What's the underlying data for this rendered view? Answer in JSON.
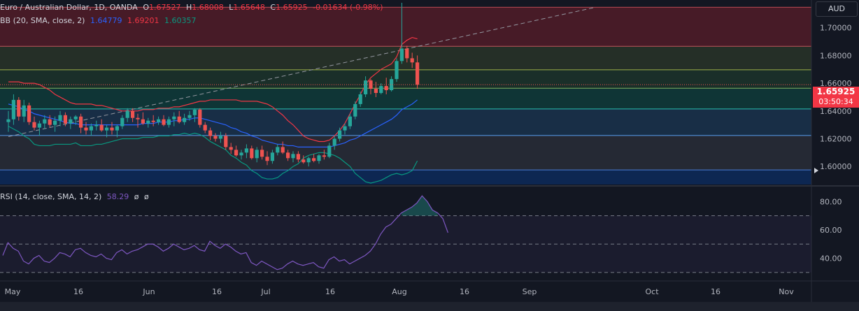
{
  "header": {
    "symbol": "Euro / Australian Dollar, 1D, OANDA",
    "o_label": "O",
    "o_value": "1.67527",
    "h_label": "H",
    "h_value": "1.68008",
    "l_label": "L",
    "l_value": "1.65648",
    "c_label": "C",
    "c_value": "1.65925",
    "change": "-0.01634 (-0.98%)"
  },
  "bb_legend": {
    "label": "BB (20, SMA, close, 2)",
    "basis": "1.64779",
    "upper": "1.69201",
    "lower": "1.60357"
  },
  "rsi_legend": {
    "label": "RSI (14, close, SMA, 14, 2)",
    "value": "58.29",
    "extra1": "ø",
    "extra2": "ø"
  },
  "price_axis": {
    "currency": "AUD",
    "current_price": "1.65925",
    "countdown": "03:50:34"
  },
  "colors": {
    "background": "#131722",
    "up": "#26a69a",
    "down": "#ef5350",
    "bb_basis": "#2962ff",
    "bb_upper": "#f23645",
    "bb_lower": "#089981",
    "rsi": "#7e57c2",
    "current_price_tag": "#f23645"
  },
  "chart_data": [
    {
      "type": "candlestick",
      "title": "Euro / Australian Dollar, 1D, OANDA",
      "x_ticks": [
        "May",
        "16",
        "Jun",
        "16",
        "Jul",
        "16",
        "Aug",
        "16",
        "Sep",
        "Oct",
        "16",
        "Nov"
      ],
      "y_ticks": [
        "1.60000",
        "1.62000",
        "1.64000",
        "1.66000",
        "1.68000",
        "1.70000"
      ],
      "ylim": [
        1.587,
        1.72
      ],
      "grid": false,
      "series": [
        {
          "name": "EURAUD",
          "ohlc": [
            [
              1.632,
              1.64,
              1.625,
              1.634
            ],
            [
              1.634,
              1.652,
              1.63,
              1.648
            ],
            [
              1.648,
              1.65,
              1.633,
              1.636
            ],
            [
              1.636,
              1.648,
              1.632,
              1.644
            ],
            [
              1.644,
              1.646,
              1.63,
              1.632
            ],
            [
              1.632,
              1.636,
              1.626,
              1.628
            ],
            [
              1.628,
              1.633,
              1.622,
              1.631
            ],
            [
              1.631,
              1.637,
              1.627,
              1.634
            ],
            [
              1.634,
              1.637,
              1.628,
              1.63
            ],
            [
              1.63,
              1.636,
              1.625,
              1.633
            ],
            [
              1.633,
              1.64,
              1.629,
              1.637
            ],
            [
              1.637,
              1.639,
              1.629,
              1.631
            ],
            [
              1.631,
              1.636,
              1.627,
              1.634
            ],
            [
              1.634,
              1.637,
              1.63,
              1.636
            ],
            [
              1.636,
              1.638,
              1.624,
              1.628
            ],
            [
              1.628,
              1.632,
              1.623,
              1.626
            ],
            [
              1.626,
              1.631,
              1.622,
              1.629
            ],
            [
              1.629,
              1.633,
              1.626,
              1.63
            ],
            [
              1.63,
              1.634,
              1.625,
              1.626
            ],
            [
              1.626,
              1.63,
              1.621,
              1.628
            ],
            [
              1.628,
              1.632,
              1.623,
              1.626
            ],
            [
              1.626,
              1.63,
              1.621,
              1.629
            ],
            [
              1.629,
              1.637,
              1.627,
              1.635
            ],
            [
              1.635,
              1.642,
              1.632,
              1.64
            ],
            [
              1.64,
              1.642,
              1.632,
              1.635
            ],
            [
              1.635,
              1.638,
              1.628,
              1.634
            ],
            [
              1.634,
              1.639,
              1.63,
              1.631
            ],
            [
              1.631,
              1.635,
              1.628,
              1.633
            ],
            [
              1.633,
              1.637,
              1.629,
              1.632
            ],
            [
              1.632,
              1.636,
              1.63,
              1.634
            ],
            [
              1.634,
              1.637,
              1.629,
              1.63
            ],
            [
              1.63,
              1.636,
              1.628,
              1.634
            ],
            [
              1.634,
              1.639,
              1.629,
              1.636
            ],
            [
              1.636,
              1.64,
              1.631,
              1.632
            ],
            [
              1.632,
              1.638,
              1.63,
              1.635
            ],
            [
              1.635,
              1.64,
              1.633,
              1.637
            ],
            [
              1.637,
              1.642,
              1.632,
              1.641
            ],
            [
              1.641,
              1.642,
              1.628,
              1.63
            ],
            [
              1.63,
              1.632,
              1.624,
              1.626
            ],
            [
              1.626,
              1.628,
              1.619,
              1.622
            ],
            [
              1.622,
              1.624,
              1.618,
              1.62
            ],
            [
              1.62,
              1.625,
              1.617,
              1.622
            ],
            [
              1.622,
              1.624,
              1.612,
              1.614
            ],
            [
              1.614,
              1.617,
              1.609,
              1.612
            ],
            [
              1.612,
              1.615,
              1.607,
              1.608
            ],
            [
              1.608,
              1.612,
              1.605,
              1.61
            ],
            [
              1.61,
              1.616,
              1.606,
              1.613
            ],
            [
              1.613,
              1.615,
              1.605,
              1.606
            ],
            [
              1.606,
              1.614,
              1.603,
              1.612
            ],
            [
              1.612,
              1.615,
              1.605,
              1.607
            ],
            [
              1.607,
              1.611,
              1.601,
              1.604
            ],
            [
              1.604,
              1.612,
              1.602,
              1.61
            ],
            [
              1.61,
              1.616,
              1.608,
              1.614
            ],
            [
              1.614,
              1.618,
              1.609,
              1.61
            ],
            [
              1.61,
              1.612,
              1.604,
              1.606
            ],
            [
              1.606,
              1.611,
              1.603,
              1.609
            ],
            [
              1.609,
              1.611,
              1.603,
              1.605
            ],
            [
              1.605,
              1.608,
              1.602,
              1.603
            ],
            [
              1.603,
              1.607,
              1.6,
              1.606
            ],
            [
              1.606,
              1.609,
              1.603,
              1.604
            ],
            [
              1.604,
              1.609,
              1.602,
              1.608
            ],
            [
              1.608,
              1.612,
              1.605,
              1.607
            ],
            [
              1.607,
              1.617,
              1.606,
              1.615
            ],
            [
              1.615,
              1.622,
              1.612,
              1.62
            ],
            [
              1.62,
              1.628,
              1.618,
              1.626
            ],
            [
              1.626,
              1.631,
              1.623,
              1.629
            ],
            [
              1.629,
              1.638,
              1.627,
              1.636
            ],
            [
              1.636,
              1.647,
              1.634,
              1.645
            ],
            [
              1.645,
              1.654,
              1.643,
              1.652
            ],
            [
              1.652,
              1.665,
              1.65,
              1.662
            ],
            [
              1.662,
              1.663,
              1.652,
              1.656
            ],
            [
              1.656,
              1.661,
              1.65,
              1.653
            ],
            [
              1.653,
              1.66,
              1.652,
              1.658
            ],
            [
              1.658,
              1.664,
              1.652,
              1.655
            ],
            [
              1.655,
              1.665,
              1.654,
              1.663
            ],
            [
              1.663,
              1.678,
              1.661,
              1.676
            ],
            [
              1.676,
              1.718,
              1.674,
              1.685
            ],
            [
              1.685,
              1.687,
              1.675,
              1.678
            ],
            [
              1.678,
              1.682,
              1.671,
              1.675
            ],
            [
              1.675,
              1.68,
              1.656,
              1.659
            ]
          ]
        },
        {
          "name": "BB basis",
          "values": [
            1.645,
            1.644,
            1.643,
            1.641,
            1.64,
            1.638,
            1.637,
            1.636,
            1.635,
            1.634,
            1.633,
            1.632,
            1.631,
            1.631,
            1.63,
            1.63,
            1.63,
            1.63,
            1.63,
            1.63,
            1.63,
            1.63,
            1.63,
            1.63,
            1.63,
            1.63,
            1.631,
            1.631,
            1.631,
            1.632,
            1.632,
            1.632,
            1.633,
            1.633,
            1.634,
            1.634,
            1.635,
            1.635,
            1.634,
            1.633,
            1.632,
            1.631,
            1.63,
            1.628,
            1.627,
            1.625,
            1.624,
            1.622,
            1.621,
            1.619,
            1.618,
            1.617,
            1.616,
            1.616,
            1.615,
            1.615,
            1.614,
            1.614,
            1.614,
            1.614,
            1.614,
            1.614,
            1.614,
            1.615,
            1.616,
            1.617,
            1.619,
            1.62,
            1.622,
            1.624,
            1.626,
            1.628,
            1.63,
            1.632,
            1.634,
            1.637,
            1.641,
            1.643,
            1.645,
            1.648
          ]
        },
        {
          "name": "BB upper",
          "values": [
            1.661,
            1.661,
            1.661,
            1.66,
            1.66,
            1.66,
            1.659,
            1.657,
            1.655,
            1.652,
            1.65,
            1.648,
            1.646,
            1.645,
            1.645,
            1.645,
            1.645,
            1.644,
            1.644,
            1.643,
            1.642,
            1.641,
            1.64,
            1.64,
            1.64,
            1.64,
            1.641,
            1.641,
            1.641,
            1.642,
            1.642,
            1.642,
            1.643,
            1.643,
            1.644,
            1.645,
            1.646,
            1.647,
            1.647,
            1.648,
            1.648,
            1.648,
            1.648,
            1.648,
            1.648,
            1.647,
            1.647,
            1.647,
            1.647,
            1.646,
            1.645,
            1.643,
            1.64,
            1.637,
            1.633,
            1.63,
            1.626,
            1.622,
            1.62,
            1.619,
            1.618,
            1.618,
            1.619,
            1.622,
            1.626,
            1.631,
            1.638,
            1.645,
            1.652,
            1.659,
            1.664,
            1.667,
            1.67,
            1.672,
            1.674,
            1.679,
            1.688,
            1.691,
            1.693,
            1.692
          ]
        },
        {
          "name": "BB lower",
          "values": [
            1.629,
            1.627,
            1.625,
            1.622,
            1.62,
            1.616,
            1.615,
            1.615,
            1.615,
            1.616,
            1.616,
            1.616,
            1.616,
            1.617,
            1.615,
            1.615,
            1.615,
            1.616,
            1.616,
            1.617,
            1.618,
            1.619,
            1.62,
            1.62,
            1.62,
            1.62,
            1.621,
            1.621,
            1.621,
            1.622,
            1.622,
            1.622,
            1.623,
            1.623,
            1.624,
            1.623,
            1.624,
            1.623,
            1.621,
            1.618,
            1.616,
            1.614,
            1.612,
            1.608,
            1.606,
            1.603,
            1.601,
            1.597,
            1.595,
            1.592,
            1.591,
            1.591,
            1.592,
            1.595,
            1.597,
            1.6,
            1.602,
            1.606,
            1.608,
            1.609,
            1.61,
            1.61,
            1.609,
            1.608,
            1.606,
            1.603,
            1.6,
            1.595,
            1.592,
            1.589,
            1.588,
            1.589,
            1.59,
            1.592,
            1.594,
            1.595,
            1.594,
            1.595,
            1.597,
            1.604
          ]
        }
      ],
      "horizontal_levels": [
        1.7148,
        1.6866,
        1.6697,
        1.6564,
        1.6415,
        1.6223,
        1.5975
      ],
      "trendline": {
        "from": [
          0,
          1.6215
        ],
        "to": [
          109,
          1.7148
        ]
      }
    },
    {
      "type": "line",
      "title": "RSI (14, close, SMA, 14, 2)",
      "y_ticks": [
        "40.00",
        "60.00",
        "80.00"
      ],
      "ylim": [
        25,
        90
      ],
      "bands": [
        30,
        50,
        70
      ],
      "series": [
        {
          "name": "RSI",
          "values": [
            42,
            51,
            47,
            45,
            38,
            36,
            40,
            42,
            38,
            37,
            40,
            44,
            43,
            41,
            46,
            47,
            44,
            42,
            41,
            43,
            40,
            39,
            44,
            46,
            43,
            45,
            46,
            48,
            50,
            50,
            48,
            45,
            47,
            50,
            48,
            46,
            47,
            49,
            46,
            45,
            52,
            49,
            47,
            50,
            48,
            45,
            43,
            44,
            37,
            35,
            38,
            36,
            34,
            32,
            33,
            36,
            38,
            36,
            35,
            36,
            37,
            34,
            33,
            39,
            41,
            38,
            39,
            36,
            38,
            40,
            42,
            45,
            50,
            57,
            62,
            64,
            68,
            72,
            74,
            76,
            79,
            84,
            80,
            74,
            72,
            68,
            58
          ]
        }
      ]
    }
  ]
}
